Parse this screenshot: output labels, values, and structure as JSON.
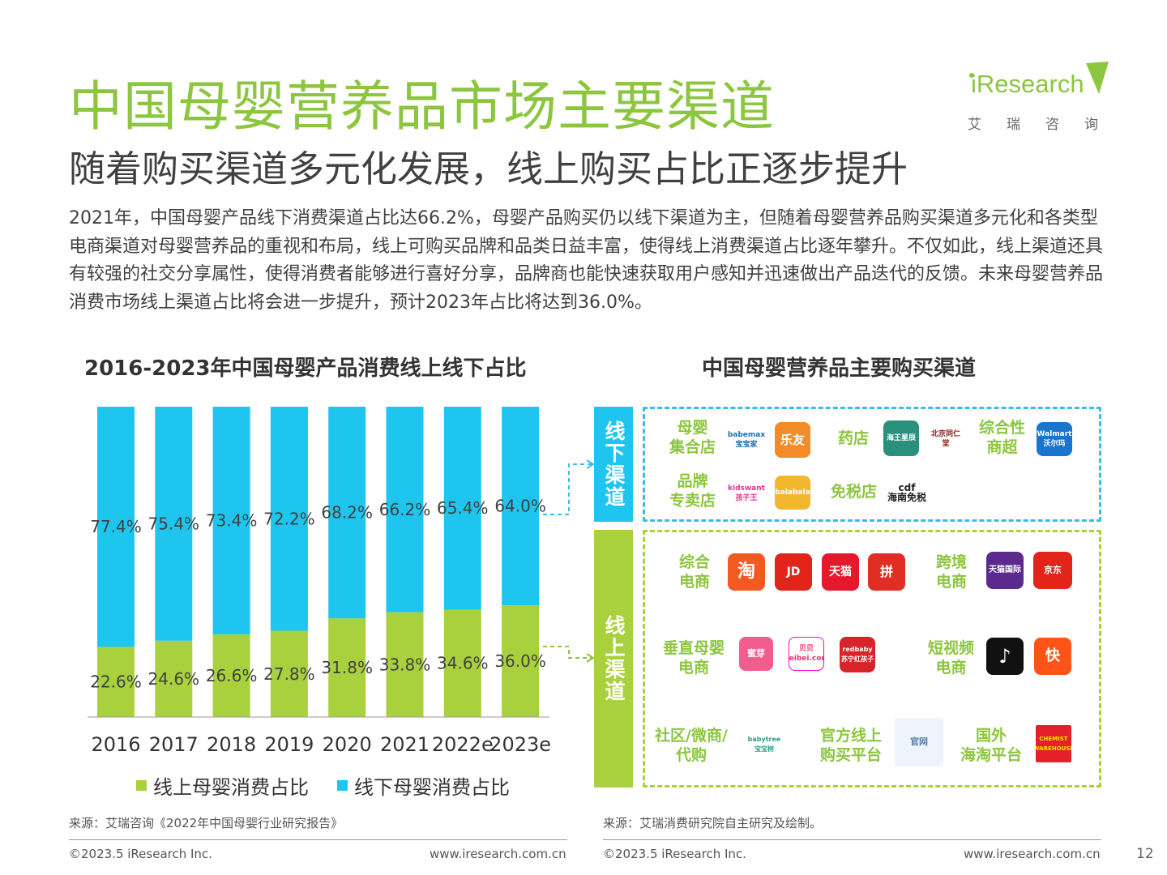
{
  "header": {
    "title": "中国母婴营养品市场主要渠道",
    "subtitle": "随着购买渠道多元化发展，线上购买占比正逐步提升",
    "intro": "2021年，中国母婴产品线下消费渠道占比达66.2%，母婴产品购买仍以线下渠道为主，但随着母婴营养品购买渠道多元化和各类型电商渠道对母婴营养品的重视和布局，线上可购买品牌和品类日益丰富，使得线上消费渠道占比逐年攀升。不仅如此，线上渠道还具有较强的社交分享属性，使得消费者能够进行喜好分享，品牌商也能快速获取用户感知并迅速做出产品迭代的反馈。未来母婴营养品消费市场线上渠道占比将会进一步提升，预计2023年占比将达到36.0%。"
  },
  "logo": {
    "word": "iResearch",
    "cn": "艾瑞咨询"
  },
  "chart_data": {
    "type": "bar",
    "stacked": true,
    "title": "2016-2023年中国母婴产品消费线上线下占比",
    "categories": [
      "2016",
      "2017",
      "2018",
      "2019",
      "2020",
      "2021",
      "2022e",
      "2023e"
    ],
    "series": [
      {
        "name": "线上母婴消费占比",
        "color": "#a9d13d",
        "values": [
          22.6,
          24.6,
          26.6,
          27.8,
          31.8,
          33.8,
          34.6,
          36.0
        ],
        "labels": [
          "22.6%",
          "24.6%",
          "26.6%",
          "27.8%",
          "31.8%",
          "33.8%",
          "34.6%",
          "36.0%"
        ]
      },
      {
        "name": "线下母婴消费占比",
        "color": "#1ec6ef",
        "values": [
          77.4,
          75.4,
          73.4,
          72.2,
          68.2,
          66.2,
          65.4,
          64.0
        ],
        "labels": [
          "77.4%",
          "75.4%",
          "73.4%",
          "72.2%",
          "68.2%",
          "66.2%",
          "65.4%",
          "64.0%"
        ]
      }
    ],
    "ylim": [
      0,
      100
    ]
  },
  "channels": {
    "title": "中国母婴营养品主要购买渠道",
    "offline_label": "线下渠道",
    "online_label": "线上渠道",
    "offline": {
      "mother_baby_store": "母婴\n集合店",
      "pharmacy": "药店",
      "general_supermarket": "综合性\n商超",
      "brand_store": "品牌\n专卖店",
      "duty_free": "免税店"
    },
    "online": {
      "general_ecom": "综合\n电商",
      "cross_border": "跨境\n电商",
      "vertical": "垂直母婴\n电商",
      "short_video": "短视频\n电商",
      "community": "社区/微商/\n代购",
      "official": "官方线上\n购买平台",
      "overseas": "国外\n海淘平台"
    },
    "logos": {
      "babemax": "babemax\n宝宝家",
      "leyou": "乐友",
      "haiwang": "海王星辰",
      "tongrentang": "北京同仁堂",
      "walmart": "Walmart\n沃尔玛",
      "kidswant": "kidswant\n孩子王",
      "balabala": "balabala",
      "cdf": "cdf\n海南免税",
      "taobao": "淘",
      "jd": "JD",
      "tmall": "天猫",
      "pinduoduo": "拼",
      "tmall_global": "天猫国际",
      "jd_global": "京东",
      "mia": "蜜芽",
      "beibei": "贝贝\nbeibei.com",
      "redbaby": "redbaby\n苏宁红孩子",
      "douyin": "♪",
      "kuaishou": "快",
      "babytree": "babytree\n宝宝树",
      "official_site": "官网",
      "chemist": "CHEMIST\nWAREHOUSE"
    }
  },
  "footer": {
    "source_left": "来源：艾瑞咨询《2022年中国母婴行业研究报告》",
    "source_right": "来源：艾瑞消费研究院自主研究及绘制。",
    "copyright_left": "©2023.5 iResearch Inc.",
    "url_left": "www.iresearch.com.cn",
    "copyright_right": "©2023.5 iResearch Inc.",
    "url_right": "www.iresearch.com.cn",
    "page": "12"
  },
  "colors": {
    "green": "#8cc63f",
    "blue": "#3dbbe8"
  }
}
